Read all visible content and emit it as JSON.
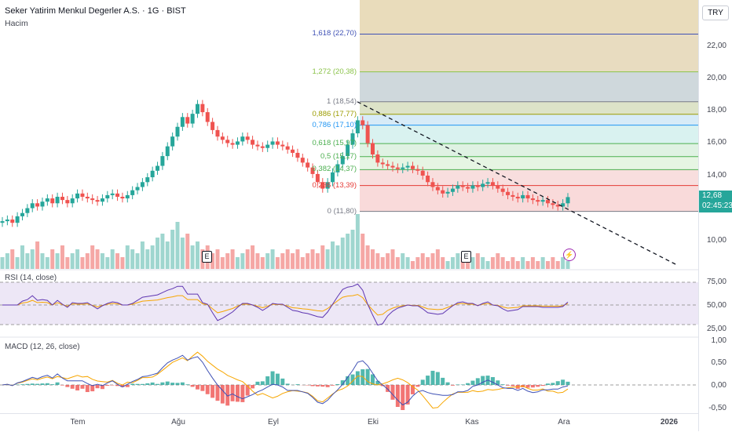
{
  "header": {
    "title": "Seker Yatirim Menkul Degerler A.S. · 1G · BIST",
    "volume_label": "Hacim"
  },
  "currency": "TRY",
  "price_axis": [
    "22,00",
    "20,00",
    "18,00",
    "16,00",
    "14,00",
    "10,00"
  ],
  "last_price": {
    "value": "12,68",
    "countdown": "02:45:23",
    "color": "#26a69a"
  },
  "fib_levels": [
    {
      "label": "1,618 (22,70)",
      "price": 22.7,
      "color": "#3f51b5"
    },
    {
      "label": "1,272 (20,38)",
      "price": 20.38,
      "color": "#8bc34a"
    },
    {
      "label": "1 (18,54)",
      "price": 18.54,
      "color": "#787b86"
    },
    {
      "label": "0,886 (17,77)",
      "price": 17.77,
      "color": "#9c9c00"
    },
    {
      "label": "0,786 (17,10)",
      "price": 17.1,
      "color": "#2196f3"
    },
    {
      "label": "0,618 (15,97)",
      "price": 15.97,
      "color": "#4caf50"
    },
    {
      "label": "0,5 (15,17)",
      "price": 15.17,
      "color": "#4caf50"
    },
    {
      "label": "0,382 (14,37)",
      "price": 14.37,
      "color": "#4caf50"
    },
    {
      "label": "0,236 (13,39)",
      "price": 13.39,
      "color": "#e53935"
    },
    {
      "label": "0 (11,80)",
      "price": 11.8,
      "color": "#787b86"
    }
  ],
  "earnings_marker": "E",
  "rsi": {
    "label": "RSI (14, close)",
    "axis": [
      "75,00",
      "50,00",
      "25,00"
    ]
  },
  "macd": {
    "label": "MACD (12, 26, close)",
    "axis": [
      "1,00",
      "0,50",
      "0,00",
      "-0,50"
    ]
  },
  "time_axis": [
    {
      "label": "Tem"
    },
    {
      "label": "Ağu"
    },
    {
      "label": "Eyl"
    },
    {
      "label": "Eki"
    },
    {
      "label": "Kas"
    },
    {
      "label": "Ara"
    },
    {
      "label": "2026"
    }
  ],
  "chart_data": {
    "type": "candlestick",
    "close_series": [
      11.2,
      11.3,
      11.1,
      11.5,
      11.7,
      12.0,
      12.3,
      12.1,
      12.4,
      12.6,
      12.3,
      12.7,
      12.5,
      12.3,
      12.6,
      12.9,
      12.7,
      12.6,
      12.5,
      12.4,
      12.6,
      12.8,
      12.9,
      12.7,
      12.6,
      12.8,
      13.1,
      13.3,
      13.6,
      13.9,
      14.3,
      14.6,
      15.2,
      15.8,
      16.4,
      17.0,
      17.6,
      17.2,
      17.8,
      18.4,
      17.9,
      17.3,
      16.8,
      16.4,
      16.2,
      16.0,
      15.9,
      16.1,
      16.4,
      16.2,
      15.9,
      15.8,
      15.7,
      15.9,
      16.1,
      15.9,
      15.8,
      15.6,
      15.4,
      15.1,
      14.8,
      14.5,
      14.1,
      13.6,
      13.2,
      13.6,
      14.2,
      14.7,
      15.2,
      15.9,
      16.6,
      17.4,
      17.1,
      16.0,
      15.3,
      14.8,
      14.7,
      14.6,
      14.5,
      14.4,
      14.5,
      14.6,
      14.4,
      14.3,
      14.0,
      13.6,
      13.3,
      13.1,
      12.9,
      13.0,
      13.2,
      13.4,
      13.3,
      13.2,
      13.4,
      13.3,
      13.5,
      13.6,
      13.4,
      13.2,
      13.0,
      12.8,
      12.7,
      12.6,
      12.8,
      12.6,
      12.5,
      12.4,
      12.5,
      12.3,
      12.2,
      12.1,
      12.3,
      12.68
    ],
    "volume": [
      3,
      4,
      5,
      3,
      6,
      4,
      5,
      7,
      4,
      3,
      5,
      4,
      6,
      3,
      4,
      5,
      3,
      4,
      6,
      5,
      4,
      3,
      5,
      4,
      3,
      6,
      5,
      4,
      7,
      5,
      6,
      8,
      9,
      7,
      10,
      12,
      8,
      9,
      6,
      7,
      5,
      6,
      4,
      5,
      3,
      4,
      5,
      3,
      4,
      5,
      6,
      4,
      3,
      4,
      5,
      3,
      4,
      5,
      4,
      5,
      3,
      4,
      5,
      4,
      6,
      5,
      7,
      6,
      8,
      9,
      10,
      14,
      9,
      6,
      5,
      4,
      3,
      4,
      5,
      3,
      4,
      3,
      2,
      3,
      4,
      3,
      4,
      5,
      3,
      2,
      3,
      4,
      3,
      2,
      3,
      4,
      3,
      2,
      3,
      4,
      3,
      2,
      3,
      2,
      3,
      2,
      3,
      2,
      3,
      2,
      3,
      2,
      3,
      2
    ],
    "trendline": {
      "from": [
        0,
        18.54
      ],
      "to": [
        1,
        8.0
      ]
    },
    "fib_range": [
      11.8,
      18.54,
      22.7
    ]
  }
}
